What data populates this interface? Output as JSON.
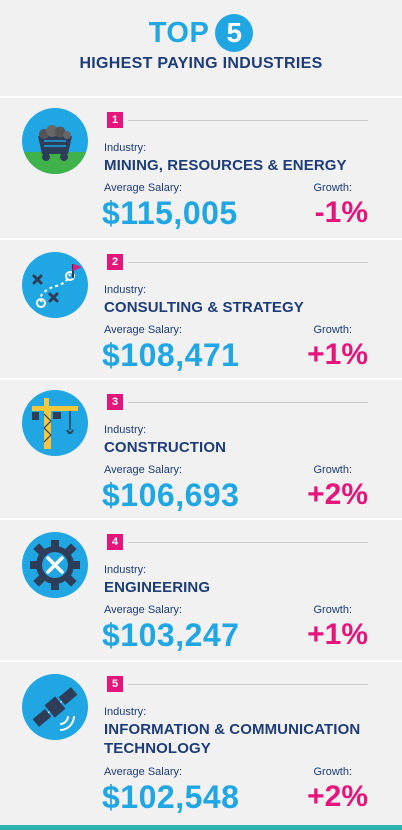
{
  "header": {
    "top_word": "TOP",
    "top_number": "5",
    "subtitle": "HIGHEST PAYING INDUSTRIES"
  },
  "labels": {
    "industry": "Industry:",
    "salary": "Average Salary:",
    "growth": "Growth:"
  },
  "industries": [
    {
      "rank": "1",
      "name": "MINING, RESOURCES & ENERGY",
      "salary": "$115,005",
      "growth": "-1%",
      "icon": "mining-cart-icon"
    },
    {
      "rank": "2",
      "name": "CONSULTING & STRATEGY",
      "salary": "$108,471",
      "growth": "+1%",
      "icon": "strategy-play-icon"
    },
    {
      "rank": "3",
      "name": "CONSTRUCTION",
      "salary": "$106,693",
      "growth": "+2%",
      "icon": "crane-icon"
    },
    {
      "rank": "4",
      "name": "ENGINEERING",
      "salary": "$103,247",
      "growth": "+1%",
      "icon": "gear-wrench-icon"
    },
    {
      "rank": "5",
      "name": "INFORMATION & COMMUNICATION TECHNOLOGY",
      "salary": "$102,548",
      "growth": "+2%",
      "icon": "satellite-icon"
    }
  ],
  "colors": {
    "accent_blue": "#1fa6e3",
    "accent_pink": "#e6157b",
    "navy": "#1d3c78",
    "background": "#f1f1f2"
  }
}
